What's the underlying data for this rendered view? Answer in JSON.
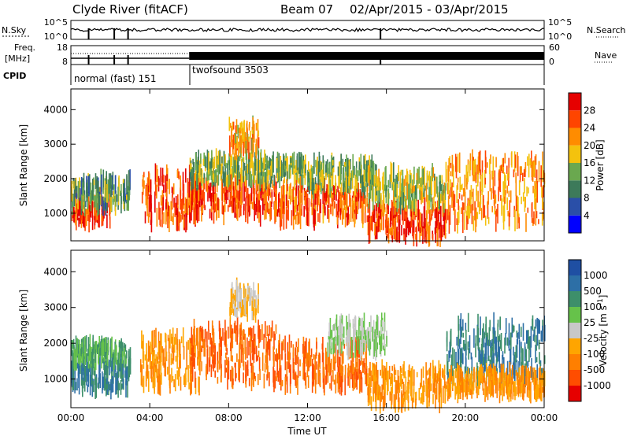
{
  "header": {
    "title": "Clyde River (fitACF)",
    "beam": "Beam 07",
    "dates": "02/Apr/2015 - 03/Apr/2015"
  },
  "noise_panel": {
    "left_label": "N.Sky",
    "right_label": "N.Search",
    "left_ticks": [
      "10^5",
      "10^0"
    ],
    "right_ticks": [
      "10^5",
      "10^0"
    ]
  },
  "freq_panel": {
    "left_label": "Freq.",
    "left_unit": "[MHz]",
    "right_label": "Nave",
    "left_ticks": [
      "18",
      "8"
    ],
    "right_ticks": [
      "60",
      "0"
    ]
  },
  "cpid_panel": {
    "label": "CPID",
    "programs": [
      {
        "name": "normal (fast) 151",
        "start_hour": 0,
        "end_hour": 6
      },
      {
        "name": "twofsound 3503",
        "start_hour": 6,
        "end_hour": 24
      }
    ]
  },
  "colors": {
    "power_scale": [
      "#0000ff",
      "#2a4fa8",
      "#3d7a5a",
      "#6aa84f",
      "#f4c20d",
      "#ff8c00",
      "#ff4500",
      "#e60000"
    ],
    "velocity_scale": [
      "#1f4fa3",
      "#2d6fa6",
      "#3d8f6a",
      "#66c24a",
      "#c8c8c8",
      "#ffa500",
      "#ff7f00",
      "#ff4d00",
      "#e60000"
    ]
  },
  "chart_data": [
    {
      "type": "heatmap",
      "name": "power",
      "xlabel": "Time UT",
      "ylabel": "Slant Range [km]",
      "xlim": [
        0,
        24
      ],
      "ylim": [
        200,
        4600
      ],
      "x_ticks": [
        "00:00",
        "04:00",
        "08:00",
        "12:00",
        "16:00",
        "20:00",
        "00:00"
      ],
      "y_ticks": [
        1000,
        2000,
        3000,
        4000
      ],
      "colorbar": {
        "label": "Power [dB]",
        "ticks": [
          4,
          8,
          12,
          16,
          20,
          24,
          28
        ],
        "range": [
          0,
          32
        ]
      },
      "regions": [
        {
          "t0": 0.0,
          "t1": 2.0,
          "r0": 700,
          "r1": 1500,
          "level": 28
        },
        {
          "t0": 0.0,
          "t1": 3.0,
          "r0": 1200,
          "r1": 2000,
          "level": 12
        },
        {
          "t0": 3.5,
          "t1": 6.5,
          "r0": 700,
          "r1": 2200,
          "level": 26
        },
        {
          "t0": 6.0,
          "t1": 10.5,
          "r0": 900,
          "r1": 1900,
          "level": 26
        },
        {
          "t0": 6.0,
          "t1": 12.0,
          "r0": 1900,
          "r1": 2600,
          "level": 14
        },
        {
          "t0": 10.5,
          "t1": 15.0,
          "r0": 800,
          "r1": 1800,
          "level": 25
        },
        {
          "t0": 12.0,
          "t1": 15.5,
          "r0": 1700,
          "r1": 2500,
          "level": 14
        },
        {
          "t0": 15.0,
          "t1": 19.0,
          "r0": 300,
          "r1": 1200,
          "level": 27
        },
        {
          "t0": 15.0,
          "t1": 19.0,
          "r0": 1200,
          "r1": 2200,
          "level": 16
        },
        {
          "t0": 19.0,
          "t1": 24.0,
          "r0": 700,
          "r1": 2600,
          "level": 22
        },
        {
          "t0": 8.0,
          "t1": 9.5,
          "r0": 2800,
          "r1": 3600,
          "level": 20
        }
      ]
    },
    {
      "type": "heatmap",
      "name": "velocity",
      "xlabel": "Time UT",
      "ylabel": "Slant Range [km]",
      "xlim": [
        0,
        24
      ],
      "ylim": [
        200,
        4600
      ],
      "x_ticks": [
        "00:00",
        "04:00",
        "08:00",
        "12:00",
        "16:00",
        "20:00",
        "00:00"
      ],
      "y_ticks": [
        1000,
        2000,
        3000,
        4000
      ],
      "colorbar": {
        "label": "Velocity [m s^-1]",
        "ticks": [
          1000,
          500,
          100,
          25,
          -25,
          -100,
          -500,
          -1000
        ]
      },
      "regions": [
        {
          "t0": 0.0,
          "t1": 3.0,
          "r0": 700,
          "r1": 1500,
          "level": 500
        },
        {
          "t0": 0.0,
          "t1": 3.0,
          "r0": 1500,
          "r1": 2000,
          "level": 100
        },
        {
          "t0": 3.5,
          "t1": 6.5,
          "r0": 800,
          "r1": 2200,
          "level": -100
        },
        {
          "t0": 6.0,
          "t1": 10.5,
          "r0": 900,
          "r1": 2500,
          "level": -500
        },
        {
          "t0": 10.5,
          "t1": 15.0,
          "r0": 800,
          "r1": 2000,
          "level": -500
        },
        {
          "t0": 13.0,
          "t1": 16.0,
          "r0": 1800,
          "r1": 2600,
          "level": 25
        },
        {
          "t0": 15.0,
          "t1": 19.0,
          "r0": 300,
          "r1": 1300,
          "level": -100
        },
        {
          "t0": 19.0,
          "t1": 24.0,
          "r0": 1000,
          "r1": 2600,
          "level": 500
        },
        {
          "t0": 19.0,
          "t1": 24.0,
          "r0": 600,
          "r1": 1200,
          "level": -100
        },
        {
          "t0": 8.0,
          "t1": 9.5,
          "r0": 2800,
          "r1": 3600,
          "level": -25
        }
      ]
    }
  ]
}
